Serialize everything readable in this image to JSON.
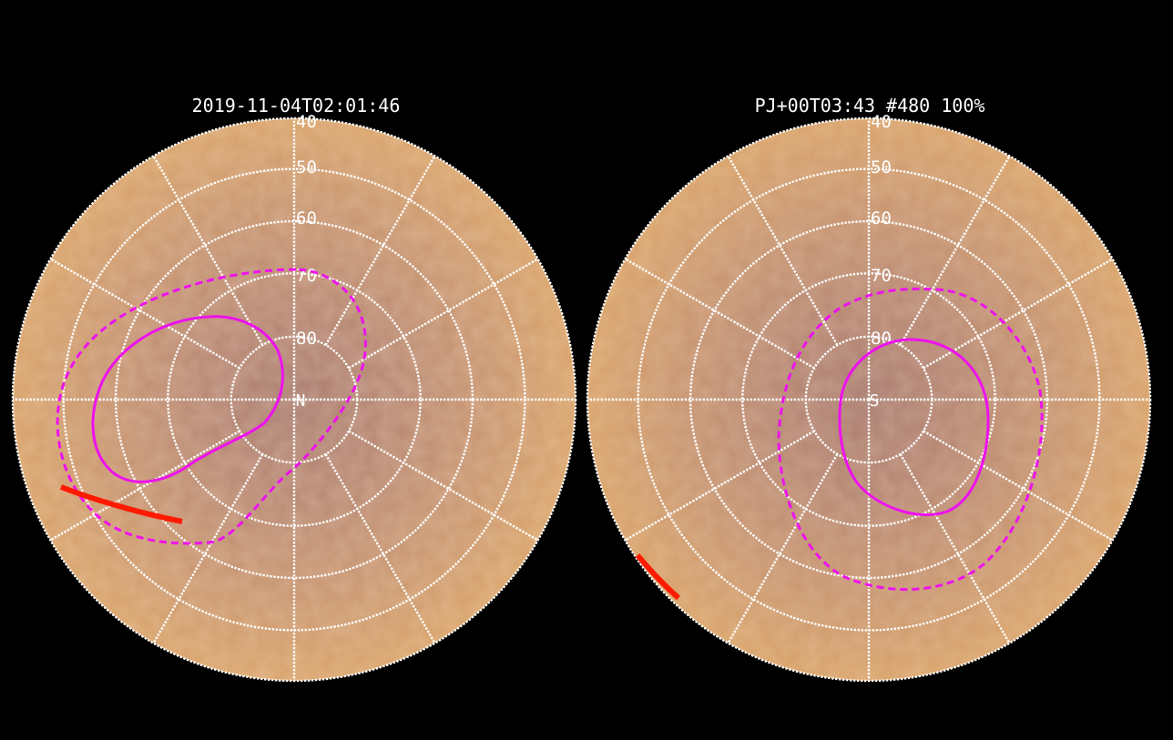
{
  "panels": [
    {
      "id": "north",
      "title": "2019-11-04T02:01:46",
      "pole_label": "N",
      "lat_labels": [
        "40",
        "50",
        "60",
        "70",
        "80"
      ]
    },
    {
      "id": "south",
      "title": "PJ+00T03:43 #480 100%",
      "pole_label": "S",
      "lat_labels": [
        "40",
        "50",
        "60",
        "70",
        "80"
      ]
    }
  ],
  "colors": {
    "background": "#000000",
    "planet_edge": "#d29a66",
    "planet_center": "#ad7f6f",
    "grid": "#ffffff",
    "auroral_oval": "#ee11ee",
    "footprint_track": "#ff1a00"
  }
}
